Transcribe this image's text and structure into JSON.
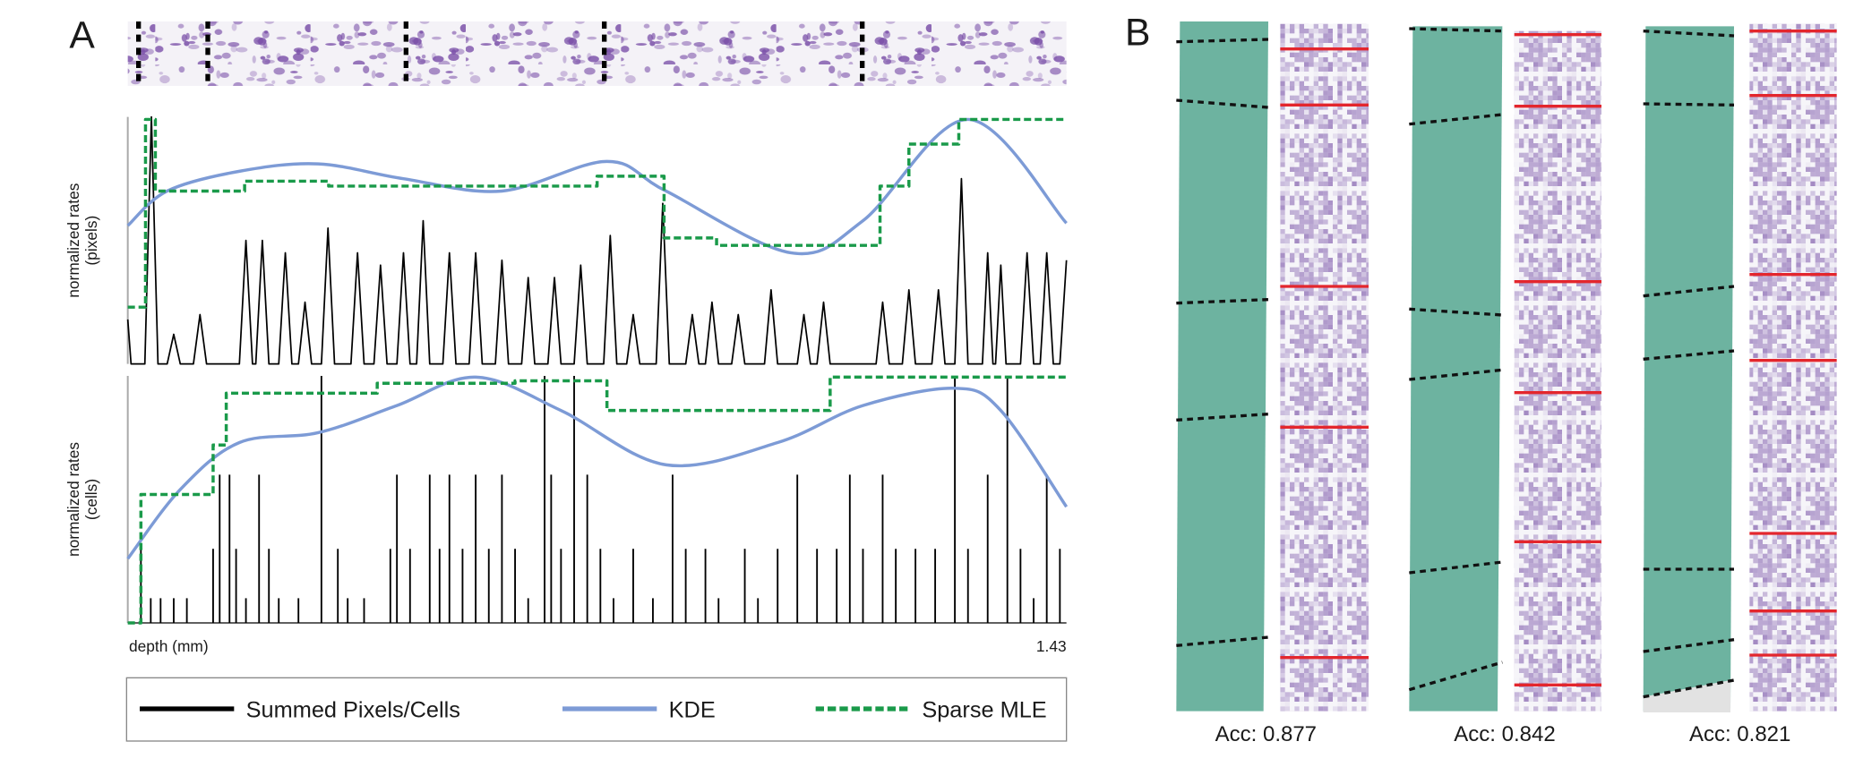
{
  "panel_labels": [
    "A",
    "B"
  ],
  "chart_data": [
    {
      "type": "line",
      "ylabel": [
        "normalized rates",
        "(pixels)"
      ],
      "xlim": [
        0,
        1.43
      ],
      "ylim": [
        0,
        1
      ],
      "series": [
        {
          "name": "Summed Pixels/Cells",
          "color": "#000000",
          "style": "line",
          "x": [
            0,
            0.005,
            0.026,
            0.036,
            0.046,
            0.06,
            0.07,
            0.08,
            0.1,
            0.11,
            0.12,
            0.17,
            0.18,
            0.19,
            0.195,
            0.205,
            0.215,
            0.23,
            0.24,
            0.25,
            0.26,
            0.27,
            0.28,
            0.295,
            0.305,
            0.315,
            0.34,
            0.35,
            0.36,
            0.375,
            0.385,
            0.395,
            0.41,
            0.42,
            0.43,
            0.44,
            0.45,
            0.46,
            0.48,
            0.49,
            0.5,
            0.52,
            0.53,
            0.54,
            0.56,
            0.57,
            0.58,
            0.6,
            0.61,
            0.62,
            0.64,
            0.65,
            0.66,
            0.68,
            0.69,
            0.7,
            0.725,
            0.735,
            0.745,
            0.76,
            0.77,
            0.78,
            0.805,
            0.815,
            0.825,
            0.85,
            0.86,
            0.87,
            0.88,
            0.89,
            0.9,
            0.92,
            0.93,
            0.94,
            0.97,
            0.98,
            0.99,
            1.02,
            1.03,
            1.04,
            1.05,
            1.06,
            1.07,
            1.14,
            1.15,
            1.16,
            1.18,
            1.19,
            1.2,
            1.225,
            1.235,
            1.245,
            1.26,
            1.27,
            1.28,
            1.302,
            1.31,
            1.318,
            1.322,
            1.33,
            1.338,
            1.36,
            1.37,
            1.38,
            1.39,
            1.4,
            1.41,
            1.42,
            1.43
          ],
          "values": [
            0.18,
            0,
            0,
            1,
            0,
            0,
            0.12,
            0,
            0,
            0.2,
            0,
            0,
            0.5,
            0,
            0,
            0.5,
            0,
            0,
            0.45,
            0,
            0,
            0.25,
            0,
            0,
            0.55,
            0,
            0,
            0.45,
            0,
            0,
            0.4,
            0,
            0,
            0.45,
            0,
            0,
            0.58,
            0,
            0,
            0.45,
            0,
            0,
            0.45,
            0,
            0,
            0.42,
            0,
            0,
            0.35,
            0,
            0,
            0.35,
            0,
            0,
            0.4,
            0,
            0,
            0.52,
            0,
            0,
            0.2,
            0,
            0,
            0.65,
            0,
            0,
            0.2,
            0,
            0,
            0.25,
            0,
            0,
            0.2,
            0,
            0,
            0.3,
            0,
            0,
            0.2,
            0,
            0,
            0.25,
            0,
            0,
            0.25,
            0,
            0,
            0.3,
            0,
            0,
            0.3,
            0,
            0,
            0.75,
            0,
            0,
            0.45,
            0,
            0,
            0.4,
            0,
            0,
            0.45,
            0,
            0,
            0.45,
            0,
            0,
            0.42
          ]
        },
        {
          "name": "KDE",
          "color": "#7d9bd6",
          "style": "smooth",
          "x": [
            0,
            0.06,
            0.17,
            0.29,
            0.42,
            0.57,
            0.73,
            0.82,
            1.01,
            1.12,
            1.28,
            1.43
          ],
          "values": [
            0.56,
            0.7,
            0.78,
            0.81,
            0.75,
            0.7,
            0.82,
            0.7,
            0.45,
            0.58,
            0.99,
            0.57
          ]
        },
        {
          "name": "Sparse MLE",
          "color": "#1a9a4a",
          "style": "step",
          "x": [
            0,
            0.027,
            0.042,
            0.178,
            0.306,
            0.715,
            0.817,
            0.897,
            1.146,
            1.19,
            1.266,
            1.43
          ],
          "values": [
            0.23,
            0.99,
            0.7,
            0.74,
            0.72,
            0.76,
            0.51,
            0.48,
            0.72,
            0.89,
            0.99,
            0.99
          ]
        }
      ]
    },
    {
      "type": "line",
      "ylabel": [
        "normalized rates",
        "(cells)"
      ],
      "xlabel": "depth (mm)",
      "xlim": [
        0,
        1.43
      ],
      "ylim": [
        0,
        1
      ],
      "xticks": [
        1.43
      ],
      "series": [
        {
          "name": "Summed Pixels/Cells",
          "color": "#000000",
          "style": "stem",
          "x": [
            0.02,
            0.035,
            0.05,
            0.07,
            0.09,
            0.13,
            0.14,
            0.155,
            0.165,
            0.18,
            0.2,
            0.215,
            0.23,
            0.26,
            0.295,
            0.32,
            0.335,
            0.36,
            0.4,
            0.41,
            0.43,
            0.46,
            0.475,
            0.49,
            0.51,
            0.53,
            0.55,
            0.57,
            0.59,
            0.61,
            0.635,
            0.645,
            0.66,
            0.68,
            0.7,
            0.72,
            0.74,
            0.77,
            0.8,
            0.83,
            0.85,
            0.88,
            0.9,
            0.94,
            0.96,
            0.99,
            1.02,
            1.05,
            1.08,
            1.1,
            1.12,
            1.15,
            1.17,
            1.2,
            1.23,
            1.26,
            1.28,
            1.31,
            1.34,
            1.36,
            1.38,
            1.4,
            1.42
          ],
          "values": [
            0.3,
            0.1,
            0.1,
            0.1,
            0.1,
            0.3,
            0.6,
            0.6,
            0.3,
            0.1,
            0.6,
            0.3,
            0.1,
            0.1,
            1,
            0.3,
            0.1,
            0.1,
            0.3,
            0.6,
            0.3,
            0.6,
            0.3,
            0.6,
            0.3,
            0.6,
            0.3,
            0.6,
            0.3,
            0.1,
            1,
            0.6,
            0.3,
            1,
            0.6,
            0.3,
            0.1,
            0.3,
            0.1,
            0.6,
            0.3,
            0.3,
            0.1,
            0.3,
            0.1,
            0.3,
            0.6,
            0.3,
            0.3,
            0.6,
            0.3,
            0.6,
            0.3,
            0.3,
            0.3,
            1,
            0.3,
            0.6,
            1,
            0.3,
            0.1,
            0.6,
            0.3
          ]
        },
        {
          "name": "KDE",
          "color": "#7d9bd6",
          "style": "smooth",
          "x": [
            0,
            0.08,
            0.17,
            0.29,
            0.41,
            0.53,
            0.66,
            0.82,
            0.99,
            1.12,
            1.26,
            1.33,
            1.43
          ],
          "values": [
            0.26,
            0.54,
            0.73,
            0.77,
            0.88,
            0.995,
            0.86,
            0.64,
            0.73,
            0.88,
            0.95,
            0.86,
            0.47
          ]
        },
        {
          "name": "Sparse MLE",
          "color": "#1a9a4a",
          "style": "step",
          "x": [
            0,
            0.02,
            0.13,
            0.15,
            0.38,
            0.59,
            0.73,
            1.07,
            1.43
          ],
          "values": [
            0,
            0.52,
            0.72,
            0.93,
            0.97,
            0.98,
            0.86,
            0.995,
            0.995
          ]
        }
      ]
    }
  ],
  "columns": [
    {
      "caption": "Acc: 0.877"
    },
    {
      "caption": "Acc: 0.842"
    },
    {
      "caption": "Acc: 0.821"
    }
  ]
}
